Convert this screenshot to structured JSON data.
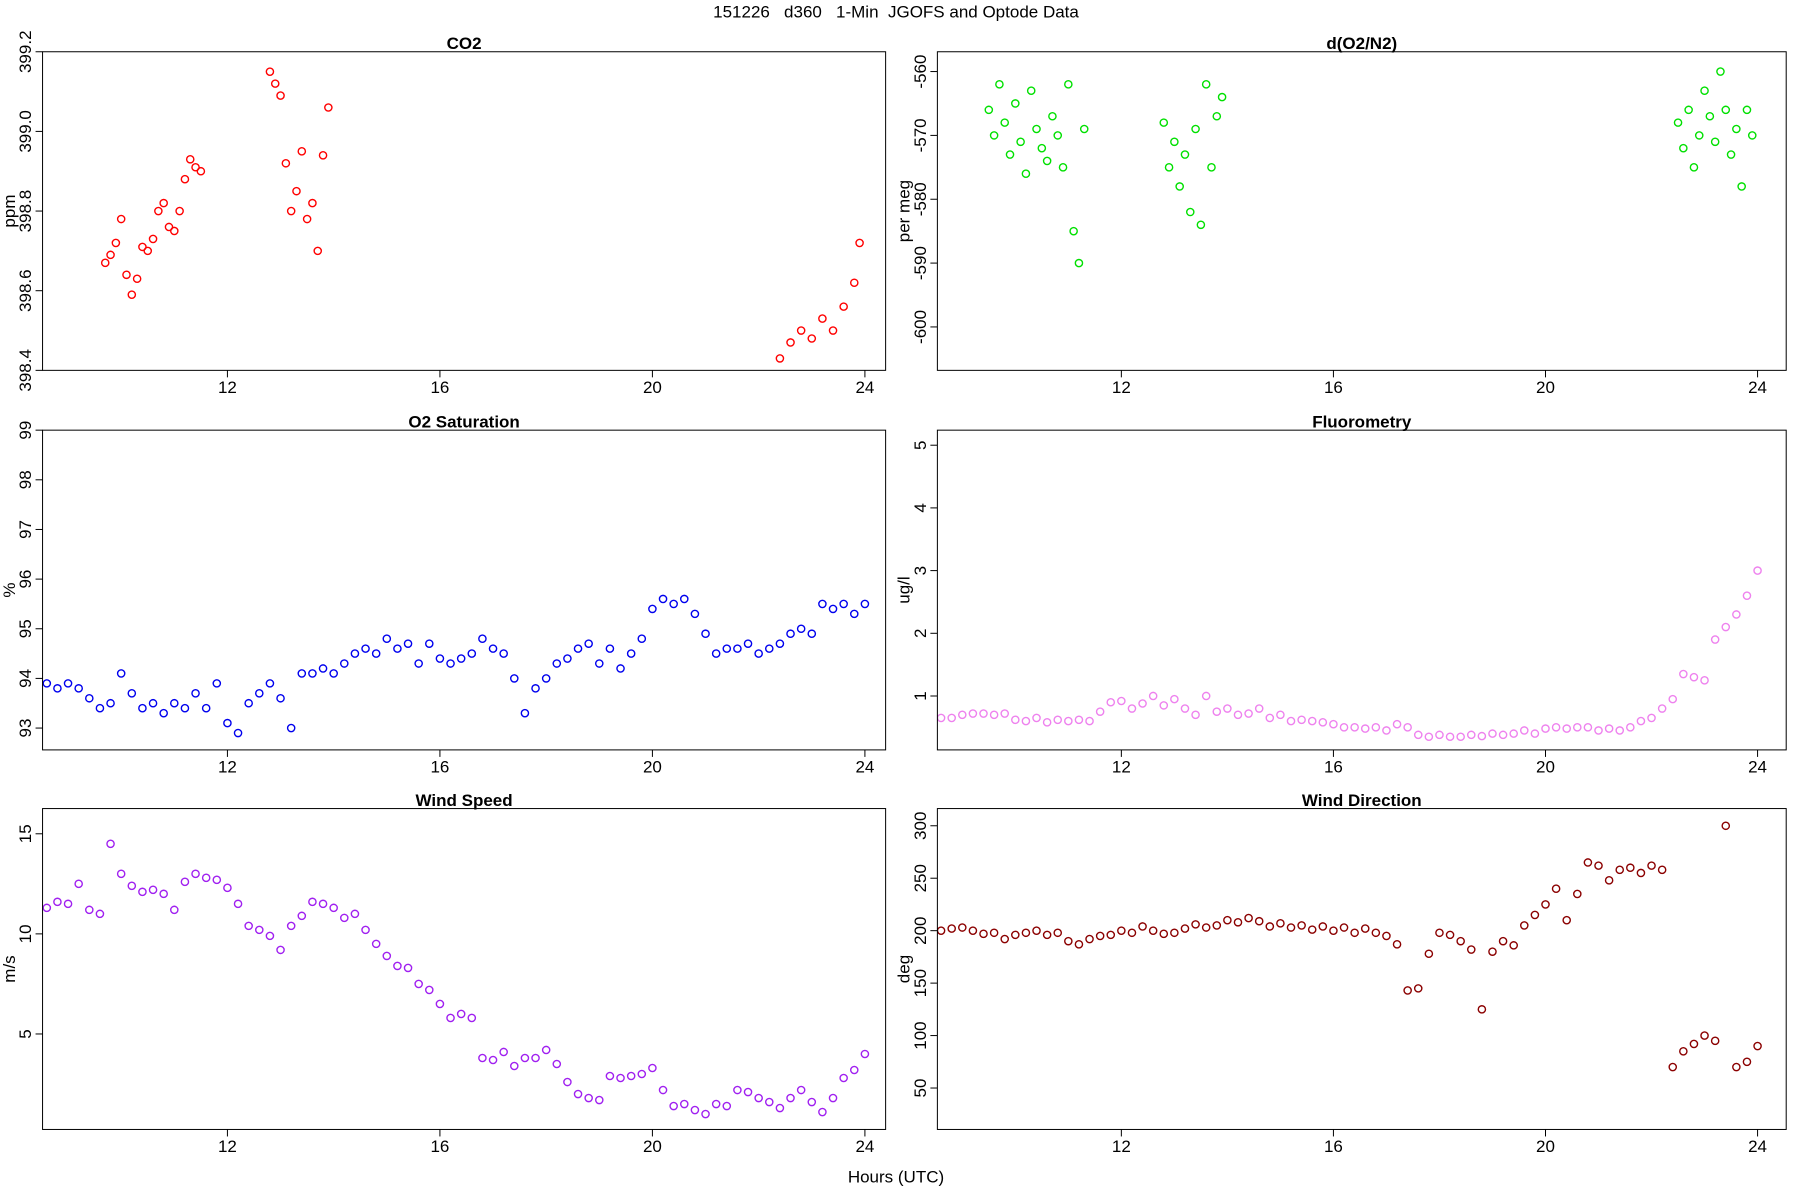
{
  "title": "151226   d360   1-Min  JGOFS and Optode Data",
  "x_label": "Hours (UTC)",
  "chart_data": [
    {
      "type": "scatter",
      "title": "CO2",
      "y_label": "ppm",
      "color": "#ff0000",
      "xlim": [
        8.52,
        24.39
      ],
      "xticks": [
        12,
        16,
        20,
        24
      ],
      "ylim": [
        398.4,
        399.2
      ],
      "yticks": [
        398.4,
        398.6,
        398.8,
        {
          "value": 399,
          "label": "399.0"
        },
        399.2
      ],
      "x": [
        9.7,
        9.8,
        9.9,
        10.0,
        10.1,
        10.2,
        10.3,
        10.4,
        10.5,
        10.6,
        10.7,
        10.8,
        10.9,
        11.0,
        11.1,
        11.2,
        11.3,
        11.4,
        11.5,
        12.8,
        12.9,
        13.0,
        13.1,
        13.2,
        13.3,
        13.4,
        13.5,
        13.6,
        13.7,
        13.8,
        13.9,
        22.4,
        22.6,
        22.8,
        23.0,
        23.2,
        23.4,
        23.6,
        23.8,
        23.9
      ],
      "values": [
        398.67,
        398.69,
        398.72,
        398.78,
        398.64,
        398.59,
        398.63,
        398.71,
        398.7,
        398.73,
        398.8,
        398.82,
        398.76,
        398.75,
        398.8,
        398.88,
        398.93,
        398.91,
        398.9,
        399.15,
        399.12,
        399.09,
        398.92,
        398.8,
        398.85,
        398.95,
        398.78,
        398.82,
        398.7,
        398.94,
        399.06,
        398.43,
        398.47,
        398.5,
        398.48,
        398.53,
        398.5,
        398.56,
        398.62,
        398.72
      ]
    },
    {
      "type": "scatter",
      "title": "d(O2/N2)",
      "y_label": "per meg",
      "color": "#00e000",
      "xlim": [
        8.53,
        24.54
      ],
      "xticks": [
        12,
        16,
        20,
        24
      ],
      "ylim": [
        -606.8,
        -556.9
      ],
      "yticks": [
        -600,
        -590,
        -580,
        -570,
        -560
      ],
      "x": [
        9.5,
        9.6,
        9.7,
        9.8,
        9.9,
        10.0,
        10.1,
        10.2,
        10.3,
        10.4,
        10.5,
        10.6,
        10.7,
        10.8,
        10.9,
        11.0,
        11.1,
        11.2,
        11.3,
        12.8,
        12.9,
        13.0,
        13.1,
        13.2,
        13.3,
        13.4,
        13.5,
        13.6,
        13.7,
        13.8,
        13.9,
        22.5,
        22.6,
        22.7,
        22.8,
        22.9,
        23.0,
        23.1,
        23.2,
        23.3,
        23.4,
        23.5,
        23.6,
        23.7,
        23.8,
        23.9
      ],
      "values": [
        -566,
        -570,
        -562,
        -568,
        -573,
        -565,
        -571,
        -576,
        -563,
        -569,
        -572,
        -574,
        -567,
        -570,
        -575,
        -562,
        -585,
        -590,
        -569,
        -568,
        -575,
        -571,
        -578,
        -573,
        -582,
        -569,
        -584,
        -562,
        -575,
        -567,
        -564,
        -568,
        -572,
        -566,
        -575,
        -570,
        -563,
        -567,
        -571,
        -560,
        -566,
        -573,
        -569,
        -578,
        -566,
        -570
      ]
    },
    {
      "type": "scatter",
      "title": "O2 Saturation",
      "y_label": "%",
      "color": "#0000ee",
      "xlim": [
        8.52,
        24.39
      ],
      "xticks": [
        12,
        16,
        20,
        24
      ],
      "ylim": [
        92.56,
        99
      ],
      "yticks": [
        93,
        94,
        95,
        96,
        97,
        98,
        99
      ],
      "x": [
        8.6,
        8.8,
        9.0,
        9.2,
        9.4,
        9.6,
        9.8,
        10.0,
        10.2,
        10.4,
        10.6,
        10.8,
        11.0,
        11.2,
        11.4,
        11.6,
        11.8,
        12.0,
        12.2,
        12.4,
        12.6,
        12.8,
        13.0,
        13.2,
        13.4,
        13.6,
        13.8,
        14.0,
        14.2,
        14.4,
        14.6,
        14.8,
        15.0,
        15.2,
        15.4,
        15.6,
        15.8,
        16.0,
        16.2,
        16.4,
        16.6,
        16.8,
        17.0,
        17.2,
        17.4,
        17.6,
        17.8,
        18.0,
        18.2,
        18.4,
        18.6,
        18.8,
        19.0,
        19.2,
        19.4,
        19.6,
        19.8,
        20.0,
        20.2,
        20.4,
        20.6,
        20.8,
        21.0,
        21.2,
        21.4,
        21.6,
        21.8,
        22.0,
        22.2,
        22.4,
        22.6,
        22.8,
        23.0,
        23.2,
        23.4,
        23.6,
        23.8,
        24.0
      ],
      "values": [
        93.9,
        93.8,
        93.9,
        93.8,
        93.6,
        93.4,
        93.5,
        94.1,
        93.7,
        93.4,
        93.5,
        93.3,
        93.5,
        93.4,
        93.7,
        93.4,
        93.9,
        93.1,
        92.9,
        93.5,
        93.7,
        93.9,
        93.6,
        93.0,
        94.1,
        94.1,
        94.2,
        94.1,
        94.3,
        94.5,
        94.6,
        94.5,
        94.8,
        94.6,
        94.7,
        94.3,
        94.7,
        94.4,
        94.3,
        94.4,
        94.5,
        94.8,
        94.6,
        94.5,
        94.0,
        93.3,
        93.8,
        94.0,
        94.3,
        94.4,
        94.6,
        94.7,
        94.3,
        94.6,
        94.2,
        94.5,
        94.8,
        95.4,
        95.6,
        95.5,
        95.6,
        95.3,
        94.9,
        94.5,
        94.6,
        94.6,
        94.7,
        94.5,
        94.6,
        94.7,
        94.9,
        95.0,
        94.9,
        95.5,
        95.4,
        95.5,
        95.3,
        95.5
      ]
    },
    {
      "type": "scatter",
      "title": "Fluorometry",
      "y_label": "ug/l",
      "color": "#ee82ee",
      "xlim": [
        8.53,
        24.54
      ],
      "xticks": [
        12,
        16,
        20,
        24
      ],
      "ylim": [
        0.14,
        5.24
      ],
      "yticks": [
        1,
        2,
        3,
        4,
        5
      ],
      "x": [
        8.6,
        8.8,
        9.0,
        9.2,
        9.4,
        9.6,
        9.8,
        10.0,
        10.2,
        10.4,
        10.6,
        10.8,
        11.0,
        11.2,
        11.4,
        11.6,
        11.8,
        12.0,
        12.2,
        12.4,
        12.6,
        12.8,
        13.0,
        13.2,
        13.4,
        13.6,
        13.8,
        14.0,
        14.2,
        14.4,
        14.6,
        14.8,
        15.0,
        15.2,
        15.4,
        15.6,
        15.8,
        16.0,
        16.2,
        16.4,
        16.6,
        16.8,
        17.0,
        17.2,
        17.4,
        17.6,
        17.8,
        18.0,
        18.2,
        18.4,
        18.6,
        18.8,
        19.0,
        19.2,
        19.4,
        19.6,
        19.8,
        20.0,
        20.2,
        20.4,
        20.6,
        20.8,
        21.0,
        21.2,
        21.4,
        21.6,
        21.8,
        22.0,
        22.2,
        22.4,
        22.6,
        22.8,
        23.0,
        23.2,
        23.4,
        23.6,
        23.8,
        24.0
      ],
      "values": [
        0.65,
        0.65,
        0.7,
        0.72,
        0.72,
        0.7,
        0.72,
        0.62,
        0.6,
        0.65,
        0.58,
        0.62,
        0.6,
        0.62,
        0.6,
        0.75,
        0.9,
        0.92,
        0.8,
        0.88,
        1.0,
        0.85,
        0.95,
        0.8,
        0.7,
        1.0,
        0.75,
        0.8,
        0.7,
        0.72,
        0.8,
        0.65,
        0.7,
        0.6,
        0.62,
        0.6,
        0.58,
        0.55,
        0.5,
        0.5,
        0.48,
        0.5,
        0.45,
        0.55,
        0.5,
        0.38,
        0.35,
        0.38,
        0.35,
        0.35,
        0.38,
        0.36,
        0.4,
        0.38,
        0.4,
        0.45,
        0.4,
        0.48,
        0.5,
        0.48,
        0.5,
        0.5,
        0.45,
        0.48,
        0.45,
        0.5,
        0.6,
        0.65,
        0.8,
        0.95,
        1.35,
        1.3,
        1.25,
        1.9,
        2.1,
        2.3,
        2.6,
        3.0
      ]
    },
    {
      "type": "scatter",
      "title": "Wind Speed",
      "y_label": "m/s",
      "color": "#a020f0",
      "xlim": [
        8.52,
        24.39
      ],
      "xticks": [
        12,
        16,
        20,
        24
      ],
      "ylim": [
        0.23,
        16.26
      ],
      "yticks": [
        5,
        10,
        15
      ],
      "x": [
        8.6,
        8.8,
        9.0,
        9.2,
        9.4,
        9.6,
        9.8,
        10.0,
        10.2,
        10.4,
        10.6,
        10.8,
        11.0,
        11.2,
        11.4,
        11.6,
        11.8,
        12.0,
        12.2,
        12.4,
        12.6,
        12.8,
        13.0,
        13.2,
        13.4,
        13.6,
        13.8,
        14.0,
        14.2,
        14.4,
        14.6,
        14.8,
        15.0,
        15.2,
        15.4,
        15.6,
        15.8,
        16.0,
        16.2,
        16.4,
        16.6,
        16.8,
        17.0,
        17.2,
        17.4,
        17.6,
        17.8,
        18.0,
        18.2,
        18.4,
        18.6,
        18.8,
        19.0,
        19.2,
        19.4,
        19.6,
        19.8,
        20.0,
        20.2,
        20.4,
        20.6,
        20.8,
        21.0,
        21.2,
        21.4,
        21.6,
        21.8,
        22.0,
        22.2,
        22.4,
        22.6,
        22.8,
        23.0,
        23.2,
        23.4,
        23.6,
        23.8,
        24.0
      ],
      "values": [
        11.3,
        11.6,
        11.5,
        12.5,
        11.2,
        11.0,
        14.5,
        13.0,
        12.4,
        12.1,
        12.2,
        12.0,
        11.2,
        12.6,
        13.0,
        12.8,
        12.7,
        12.3,
        11.5,
        10.4,
        10.2,
        9.9,
        9.2,
        10.4,
        10.9,
        11.6,
        11.5,
        11.3,
        10.8,
        11.0,
        10.2,
        9.5,
        8.9,
        8.4,
        8.3,
        7.5,
        7.2,
        6.5,
        5.8,
        6.0,
        5.8,
        3.8,
        3.7,
        4.1,
        3.4,
        3.8,
        3.8,
        4.2,
        3.5,
        2.6,
        2.0,
        1.8,
        1.7,
        2.9,
        2.8,
        2.9,
        3.0,
        3.3,
        2.2,
        1.4,
        1.5,
        1.2,
        1.0,
        1.5,
        1.4,
        2.2,
        2.1,
        1.8,
        1.6,
        1.3,
        1.8,
        2.2,
        1.6,
        1.1,
        1.8,
        2.8,
        3.2,
        4.0
      ]
    },
    {
      "type": "scatter",
      "title": "Wind Direction",
      "y_label": "deg",
      "color": "#8b0000",
      "xlim": [
        8.53,
        24.54
      ],
      "xticks": [
        12,
        16,
        20,
        24
      ],
      "ylim": [
        10.5,
        316.4
      ],
      "yticks": [
        50,
        100,
        150,
        200,
        250,
        300
      ],
      "x": [
        8.6,
        8.8,
        9.0,
        9.2,
        9.4,
        9.6,
        9.8,
        10.0,
        10.2,
        10.4,
        10.6,
        10.8,
        11.0,
        11.2,
        11.4,
        11.6,
        11.8,
        12.0,
        12.2,
        12.4,
        12.6,
        12.8,
        13.0,
        13.2,
        13.4,
        13.6,
        13.8,
        14.0,
        14.2,
        14.4,
        14.6,
        14.8,
        15.0,
        15.2,
        15.4,
        15.6,
        15.8,
        16.0,
        16.2,
        16.4,
        16.6,
        16.8,
        17.0,
        17.2,
        17.4,
        17.6,
        17.8,
        18.0,
        18.2,
        18.4,
        18.6,
        18.8,
        19.0,
        19.2,
        19.4,
        19.6,
        19.8,
        20.0,
        20.2,
        20.4,
        20.6,
        20.8,
        21.0,
        21.2,
        21.4,
        21.6,
        21.8,
        22.0,
        22.2,
        22.4,
        22.6,
        22.8,
        23.0,
        23.2,
        23.4,
        23.6,
        23.8,
        24.0
      ],
      "values": [
        200,
        202,
        203,
        200,
        197,
        198,
        192,
        196,
        198,
        200,
        196,
        198,
        190,
        187,
        192,
        195,
        196,
        200,
        198,
        204,
        200,
        197,
        198,
        202,
        206,
        203,
        205,
        210,
        208,
        212,
        209,
        204,
        207,
        203,
        205,
        201,
        204,
        200,
        203,
        198,
        202,
        198,
        195,
        187,
        143,
        145,
        178,
        198,
        196,
        190,
        182,
        125,
        180,
        190,
        186,
        205,
        215,
        225,
        240,
        210,
        235,
        265,
        262,
        248,
        258,
        260,
        255,
        262,
        258,
        70,
        85,
        92,
        100,
        95,
        300,
        70,
        75,
        90
      ]
    }
  ]
}
